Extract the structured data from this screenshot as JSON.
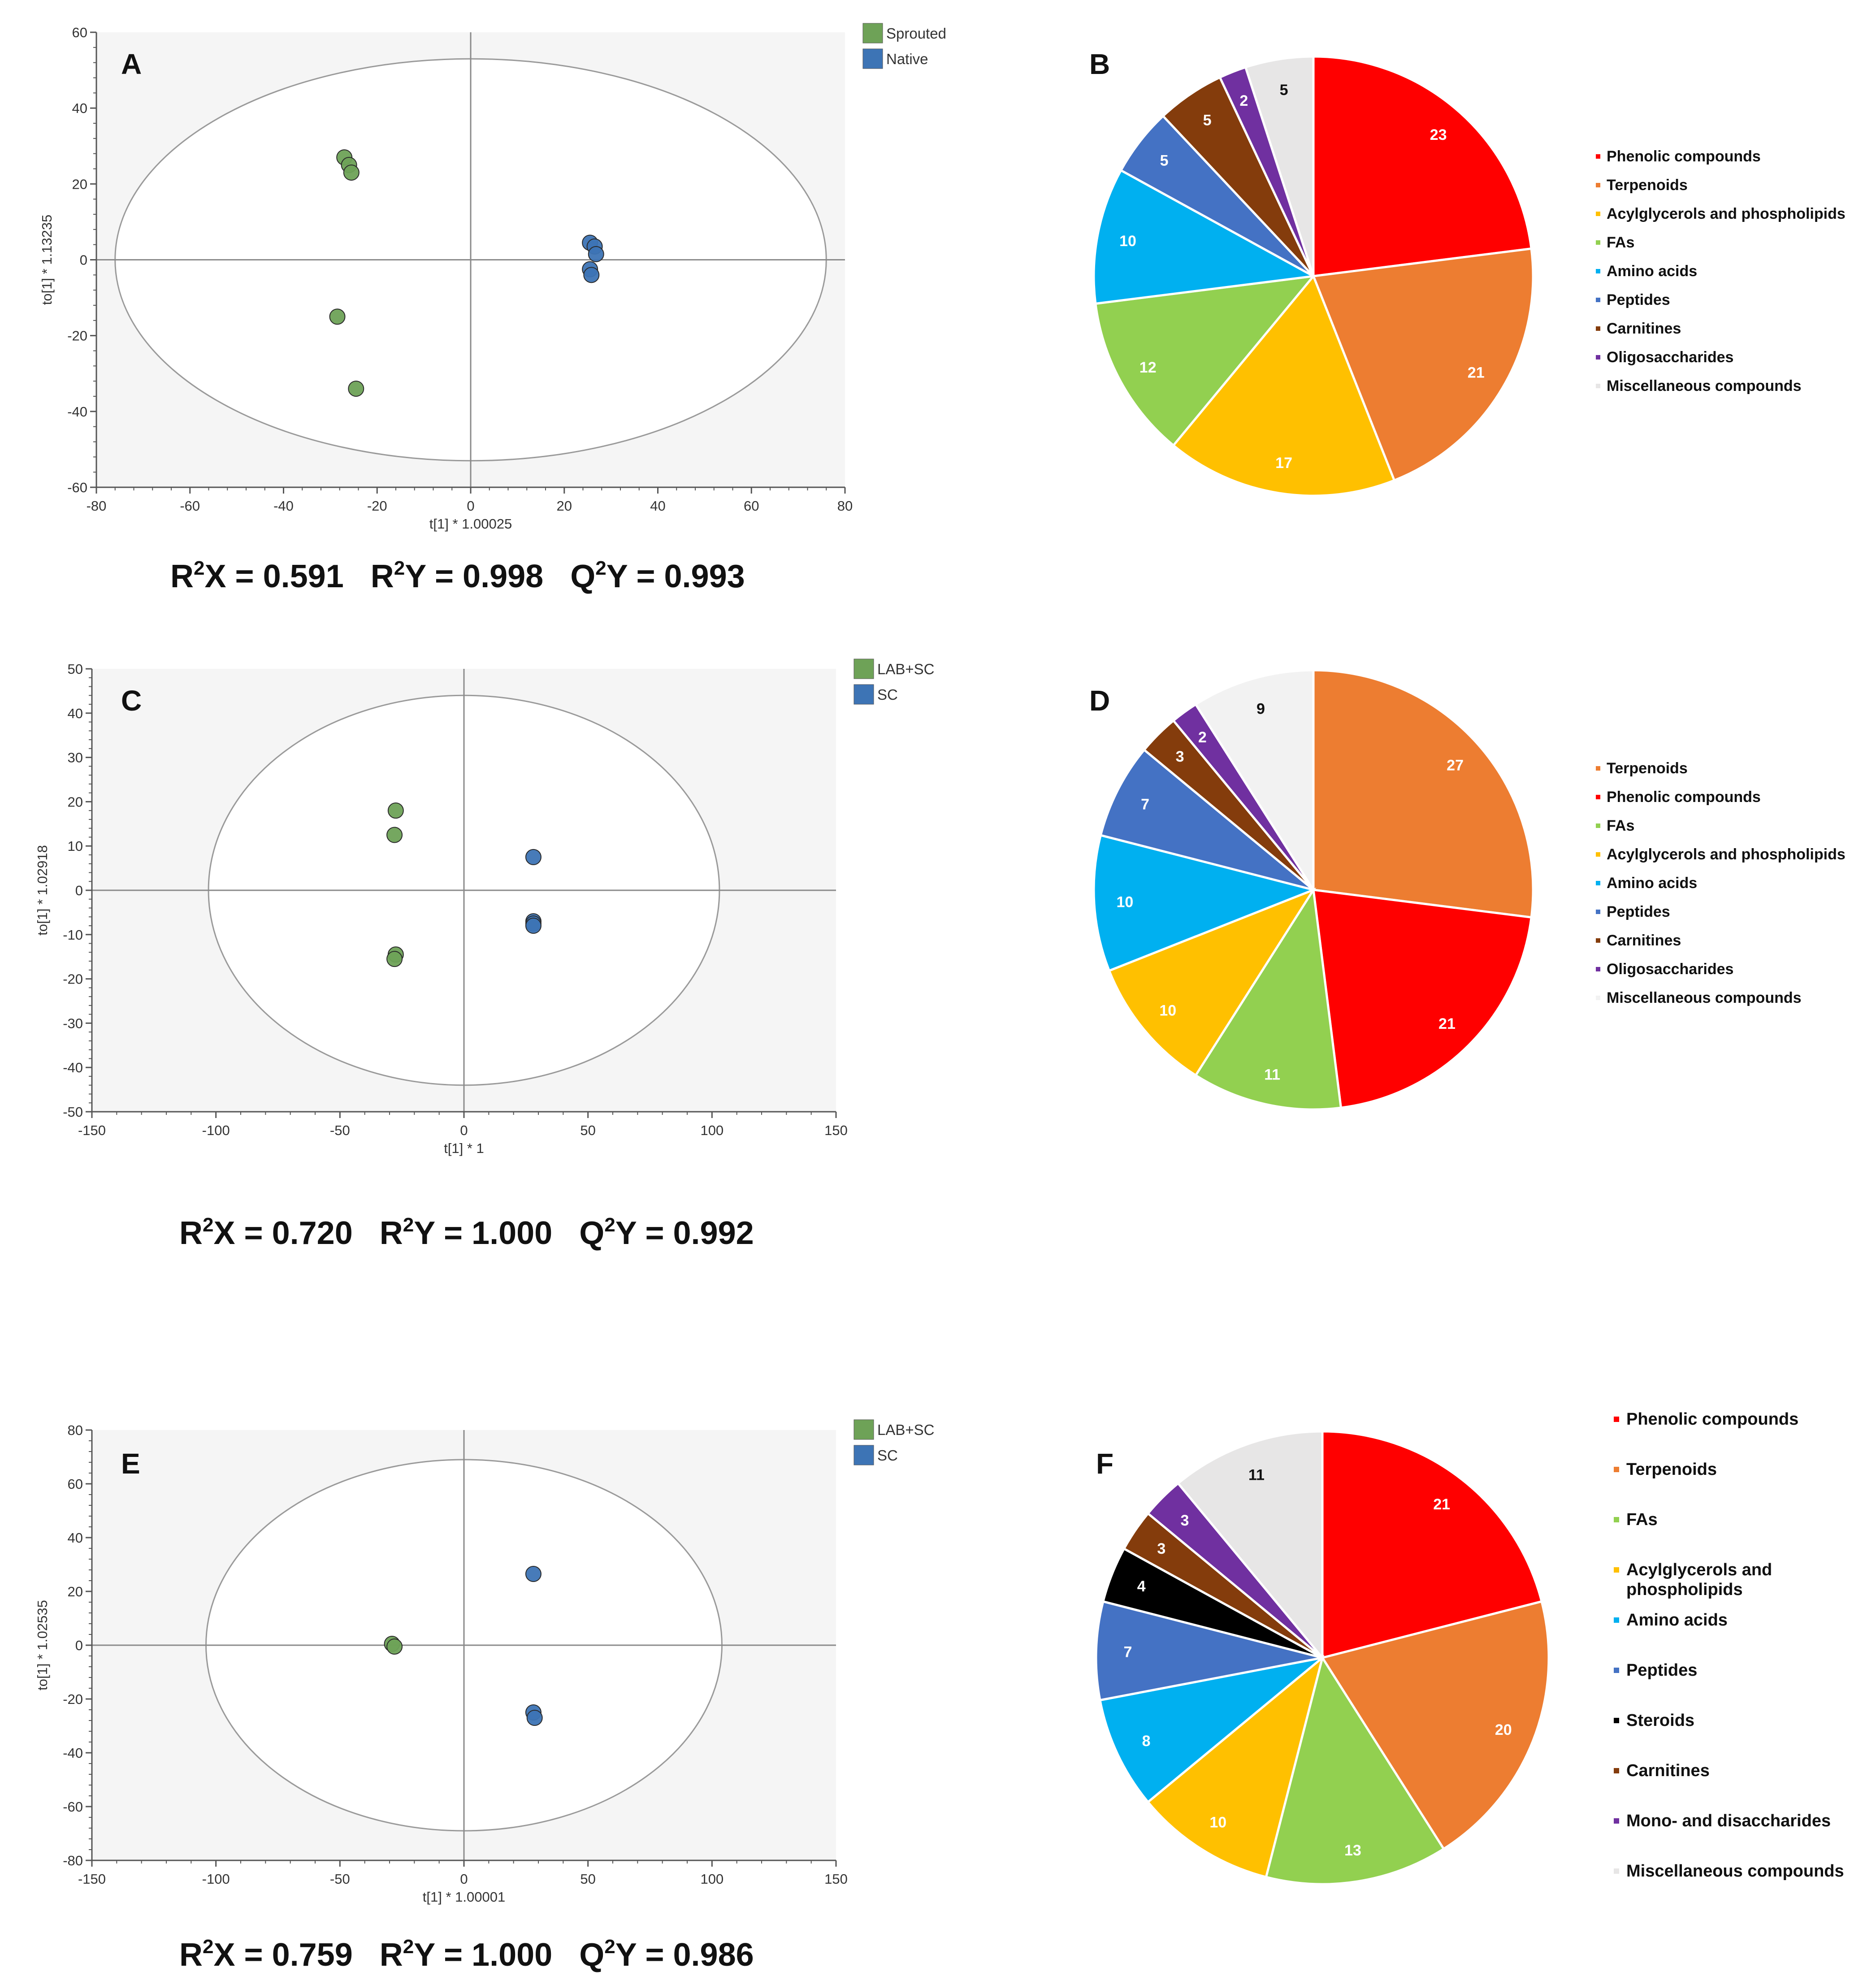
{
  "chart_data": [
    {
      "type": "scatter",
      "panel": "A",
      "xlabel": "t[1] * 1.00025",
      "ylabel": "to[1] * 1.13235",
      "xlim": [
        -80,
        80
      ],
      "ylim": [
        -60,
        60
      ],
      "xticks": [
        -80,
        -60,
        -40,
        -20,
        0,
        20,
        40,
        60,
        80
      ],
      "yticks": [
        -60,
        -40,
        -20,
        0,
        20,
        40,
        60
      ],
      "ellipse": {
        "rx": 76,
        "ry": 53
      },
      "series": [
        {
          "name": "Sprouted",
          "color": "#6ea257",
          "points": [
            [
              -27,
              27
            ],
            [
              -26,
              25
            ],
            [
              -25.5,
              23
            ],
            [
              -28.5,
              -15
            ],
            [
              -24.5,
              -34
            ]
          ]
        },
        {
          "name": "Native",
          "color": "#3d74b5",
          "points": [
            [
              25.5,
              4.5
            ],
            [
              26.5,
              3.5
            ],
            [
              26.8,
              1.5
            ],
            [
              25.5,
              -2.5
            ],
            [
              25.8,
              -4
            ]
          ]
        }
      ],
      "stats": {
        "r2x": "0.591",
        "r2y": "0.998",
        "q2y": "0.993"
      }
    },
    {
      "type": "pie",
      "panel": "B",
      "slices": [
        {
          "name": "Phenolic compounds",
          "value": 23,
          "color": "#ff0000"
        },
        {
          "name": "Terpenoids",
          "value": 21,
          "color": "#ed7d31"
        },
        {
          "name": "Acylglycerols and phospholipids",
          "value": 17,
          "color": "#ffc000"
        },
        {
          "name": "FAs",
          "value": 12,
          "color": "#92d050"
        },
        {
          "name": "Amino acids",
          "value": 10,
          "color": "#00b0f0"
        },
        {
          "name": "Peptides",
          "value": 5,
          "color": "#4472c4"
        },
        {
          "name": "Carnitines",
          "value": 5,
          "color": "#843c0c"
        },
        {
          "name": "Oligosaccharides",
          "value": 2,
          "color": "#7030a0"
        },
        {
          "name": "Miscellaneous compounds",
          "value": 5,
          "color": "#e7e6e6"
        }
      ]
    },
    {
      "type": "scatter",
      "panel": "C",
      "xlabel": "t[1] * 1",
      "ylabel": "to[1] * 1.02918",
      "xlim": [
        -150,
        150
      ],
      "ylim": [
        -50,
        50
      ],
      "xticks": [
        -150,
        -100,
        -50,
        0,
        50,
        100,
        150
      ],
      "yticks": [
        -50,
        -40,
        -30,
        -20,
        -10,
        0,
        10,
        20,
        30,
        40,
        50
      ],
      "ellipse": {
        "rx": 103,
        "ry": 44
      },
      "series": [
        {
          "name": "LAB+SC",
          "color": "#6ea257",
          "points": [
            [
              -27.5,
              18
            ],
            [
              -28,
              12.5
            ],
            [
              -27.5,
              -14.5
            ],
            [
              -28,
              -15.5
            ]
          ]
        },
        {
          "name": "SC",
          "color": "#3d74b5",
          "points": [
            [
              28,
              7.5
            ],
            [
              28,
              -7
            ],
            [
              28,
              -7.5
            ],
            [
              28,
              -8
            ]
          ]
        }
      ],
      "stats": {
        "r2x": "0.720",
        "r2y": "1.000",
        "q2y": "0.992"
      }
    },
    {
      "type": "pie",
      "panel": "D",
      "slices": [
        {
          "name": "Terpenoids",
          "value": 27,
          "color": "#ed7d31"
        },
        {
          "name": "Phenolic compounds",
          "value": 21,
          "color": "#ff0000"
        },
        {
          "name": "FAs",
          "value": 11,
          "color": "#92d050"
        },
        {
          "name": "Acylglycerols and phospholipids",
          "value": 10,
          "color": "#ffc000"
        },
        {
          "name": "Amino acids",
          "value": 10,
          "color": "#00b0f0"
        },
        {
          "name": "Peptides",
          "value": 7,
          "color": "#4472c4"
        },
        {
          "name": "Carnitines",
          "value": 3,
          "color": "#843c0c"
        },
        {
          "name": "Oligosaccharides",
          "value": 2,
          "color": "#7030a0"
        },
        {
          "name": "Miscellaneous compounds",
          "value": 9,
          "color": "#f2f2f2"
        }
      ]
    },
    {
      "type": "scatter",
      "panel": "E",
      "xlabel": "t[1] * 1.00001",
      "ylabel": "to[1] * 1.02535",
      "xlim": [
        -150,
        150
      ],
      "ylim": [
        -80,
        80
      ],
      "xticks": [
        -150,
        -100,
        -50,
        0,
        50,
        100,
        150
      ],
      "yticks": [
        -80,
        -60,
        -40,
        -20,
        0,
        20,
        40,
        60,
        80
      ],
      "ellipse": {
        "rx": 104,
        "ry": 69
      },
      "series": [
        {
          "name": "LAB+SC",
          "color": "#6ea257",
          "points": [
            [
              -29,
              0.5
            ],
            [
              -28,
              -0.5
            ]
          ]
        },
        {
          "name": "SC",
          "color": "#3d74b5",
          "points": [
            [
              28,
              26.5
            ],
            [
              28,
              -25
            ],
            [
              28.5,
              -27
            ]
          ]
        }
      ],
      "stats": {
        "r2x": "0.759",
        "r2y": "1.000",
        "q2y": "0.986"
      }
    },
    {
      "type": "pie",
      "panel": "F",
      "slices": [
        {
          "name": "Phenolic compounds",
          "value": 21,
          "color": "#ff0000"
        },
        {
          "name": "Terpenoids",
          "value": 20,
          "color": "#ed7d31"
        },
        {
          "name": "FAs",
          "value": 13,
          "color": "#92d050"
        },
        {
          "name": "Acylglycerols and phospholipids",
          "value": 10,
          "color": "#ffc000"
        },
        {
          "name": "Amino acids",
          "value": 8,
          "color": "#00b0f0"
        },
        {
          "name": "Peptides",
          "value": 7,
          "color": "#4472c4"
        },
        {
          "name": "Steroids",
          "value": 4,
          "color": "#000000"
        },
        {
          "name": "Carnitines",
          "value": 3,
          "color": "#843c0c"
        },
        {
          "name": "Mono- and disaccharides",
          "value": 3,
          "color": "#7030a0"
        },
        {
          "name": "Miscellaneous compounds",
          "value": 11,
          "color": "#e7e6e6"
        }
      ],
      "legend_lines": [
        [
          "Phenolic compounds"
        ],
        [
          "Terpenoids"
        ],
        [
          "FAs"
        ],
        [
          "Acylglycerols and",
          "phospholipids"
        ],
        [
          "Amino acids"
        ],
        [
          "Peptides"
        ],
        [
          "Steroids"
        ],
        [
          "Carnitines"
        ],
        [
          "Mono- and disaccharides"
        ],
        [
          "Miscellaneous compounds"
        ]
      ]
    }
  ]
}
